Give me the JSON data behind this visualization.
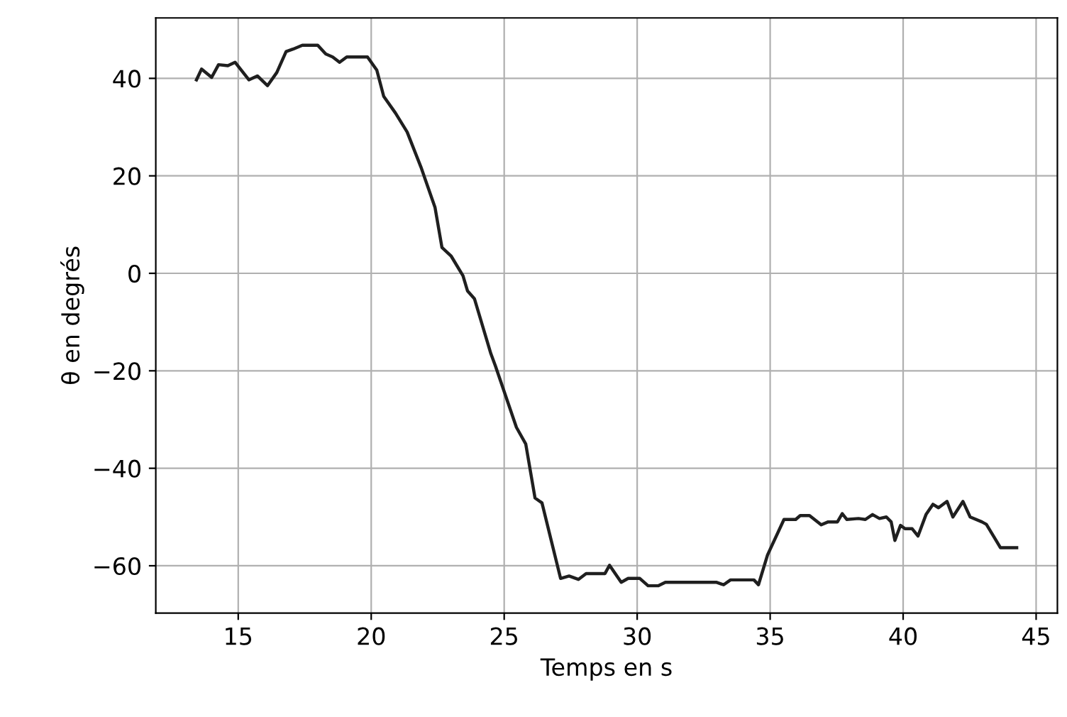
{
  "chart_data": {
    "type": "line",
    "xlabel": "Temps en s",
    "ylabel": "θ en degrés",
    "xlim": [
      11.9,
      45.8
    ],
    "ylim": [
      -69.7,
      52.4
    ],
    "xticks": [
      15,
      20,
      25,
      30,
      35,
      40,
      45
    ],
    "yticks": [
      -60,
      -40,
      -20,
      0,
      20,
      40
    ],
    "grid": true,
    "marker": "none",
    "line_style": "solid",
    "series": [
      {
        "color": "#1f1f1f",
        "x": [
          13.43,
          13.62,
          14.0,
          14.26,
          14.61,
          14.88,
          15.4,
          15.72,
          16.1,
          16.45,
          16.8,
          17.06,
          17.41,
          17.99,
          18.29,
          18.55,
          18.81,
          19.08,
          19.86,
          20.21,
          20.47,
          20.91,
          21.35,
          21.87,
          22.4,
          22.66,
          23.01,
          23.45,
          23.62,
          23.88,
          24.5,
          24.67,
          25.46,
          25.81,
          26.16,
          26.42,
          27.12,
          27.44,
          27.79,
          28.08,
          28.79,
          28.96,
          29.4,
          29.66,
          30.1,
          30.41,
          30.8,
          31.06,
          32.38,
          32.99,
          33.25,
          33.51,
          34.39,
          34.56,
          34.9,
          35.52,
          35.96,
          36.13,
          36.48,
          36.92,
          37.18,
          37.53,
          37.71,
          37.88,
          38.32,
          38.58,
          38.85,
          39.11,
          39.37,
          39.55,
          39.69,
          39.9,
          40.07,
          40.34,
          40.56,
          40.86,
          41.12,
          41.33,
          41.65,
          41.87,
          42.25,
          42.52,
          42.96,
          43.13,
          43.66,
          44.27
        ],
        "values": [
          39.7,
          41.9,
          40.2,
          42.8,
          42.6,
          43.3,
          39.7,
          40.5,
          38.5,
          41.2,
          45.5,
          46.0,
          46.8,
          46.8,
          45.0,
          44.4,
          43.3,
          44.4,
          44.4,
          41.7,
          36.3,
          32.9,
          29.0,
          21.8,
          13.5,
          5.3,
          3.5,
          -0.5,
          -3.6,
          -5.2,
          -16.5,
          -19.0,
          -31.6,
          -35.0,
          -46.1,
          -47.1,
          -62.6,
          -62.1,
          -62.8,
          -61.6,
          -61.6,
          -59.9,
          -63.4,
          -62.6,
          -62.6,
          -64.1,
          -64.1,
          -63.4,
          -63.4,
          -63.4,
          -63.9,
          -62.9,
          -62.9,
          -63.9,
          -57.8,
          -50.5,
          -50.5,
          -49.7,
          -49.7,
          -51.6,
          -51.0,
          -51.0,
          -49.3,
          -50.5,
          -50.3,
          -50.5,
          -49.5,
          -50.3,
          -50.0,
          -51.0,
          -54.8,
          -51.7,
          -52.4,
          -52.4,
          -53.9,
          -49.5,
          -47.4,
          -48.1,
          -46.8,
          -50.0,
          -46.8,
          -50.0,
          -51.0,
          -51.5,
          -56.3,
          -56.3
        ]
      }
    ]
  }
}
